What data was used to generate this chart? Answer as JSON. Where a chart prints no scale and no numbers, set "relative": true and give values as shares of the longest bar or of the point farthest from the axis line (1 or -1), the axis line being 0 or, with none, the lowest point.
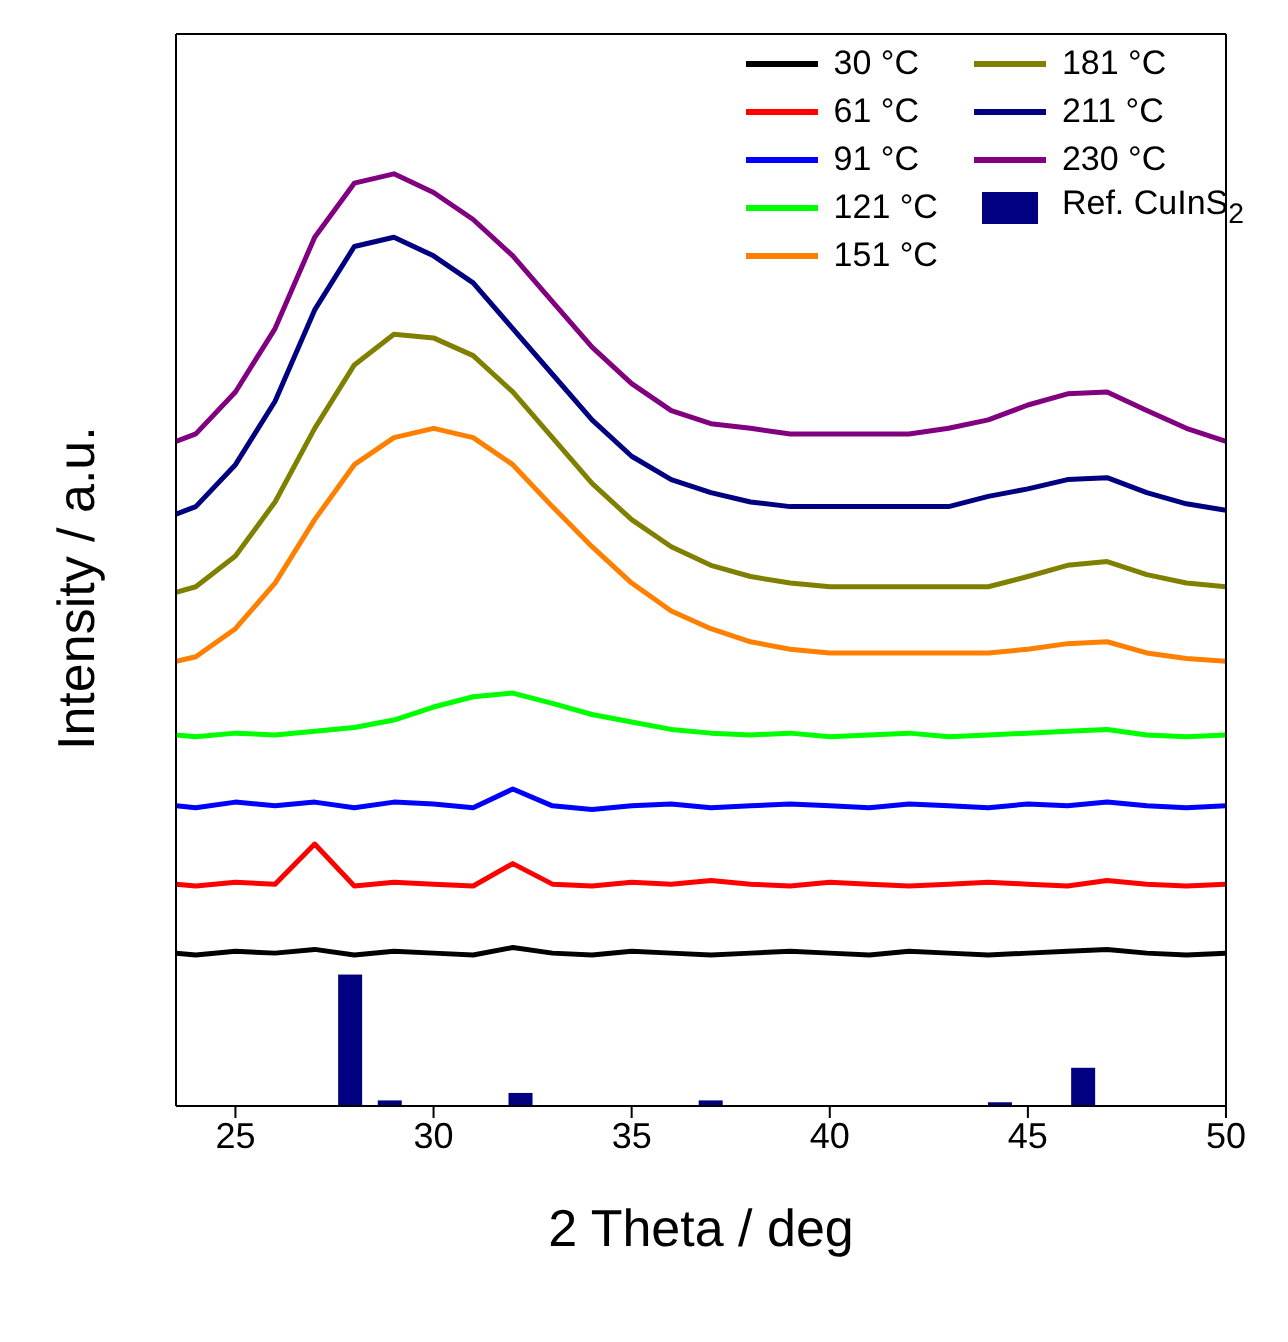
{
  "chart_data": {
    "type": "line",
    "relative": true,
    "xlabel": "2 Theta / deg",
    "ylabel": "Intensity / a.u.",
    "xlim": [
      23.5,
      50
    ],
    "xticks": [
      25,
      30,
      35,
      40,
      45,
      50
    ],
    "legend": "top right",
    "marker": "none",
    "line_style": "solid",
    "x": [
      23.5,
      24,
      25,
      26,
      27,
      28,
      29,
      30,
      31,
      32,
      33,
      34,
      35,
      36,
      37,
      38,
      39,
      40,
      41,
      42,
      43,
      44,
      45,
      46,
      47,
      48,
      49,
      50
    ],
    "series": [
      {
        "name": "30 °C",
        "color": "#000000",
        "values": [
          0.164,
          0.162,
          0.166,
          0.164,
          0.168,
          0.162,
          0.166,
          0.164,
          0.162,
          0.17,
          0.164,
          0.162,
          0.166,
          0.164,
          0.162,
          0.164,
          0.166,
          0.164,
          0.162,
          0.166,
          0.164,
          0.162,
          0.164,
          0.166,
          0.168,
          0.164,
          0.162,
          0.164
        ]
      },
      {
        "name": "61 °C",
        "color": "#ff0000",
        "values": [
          0.238,
          0.236,
          0.24,
          0.238,
          0.281,
          0.236,
          0.24,
          0.238,
          0.236,
          0.26,
          0.238,
          0.236,
          0.24,
          0.238,
          0.242,
          0.238,
          0.236,
          0.24,
          0.238,
          0.236,
          0.238,
          0.24,
          0.238,
          0.236,
          0.242,
          0.238,
          0.236,
          0.238
        ]
      },
      {
        "name": "91 °C",
        "color": "#0000ff",
        "values": [
          0.322,
          0.32,
          0.326,
          0.322,
          0.326,
          0.32,
          0.326,
          0.324,
          0.32,
          0.34,
          0.322,
          0.318,
          0.322,
          0.324,
          0.32,
          0.322,
          0.324,
          0.322,
          0.32,
          0.324,
          0.322,
          0.32,
          0.324,
          0.322,
          0.326,
          0.322,
          0.32,
          0.322
        ]
      },
      {
        "name": "121 °C",
        "color": "#00ff00",
        "values": [
          0.398,
          0.396,
          0.4,
          0.398,
          0.402,
          0.406,
          0.414,
          0.428,
          0.439,
          0.443,
          0.432,
          0.42,
          0.412,
          0.404,
          0.4,
          0.398,
          0.4,
          0.396,
          0.398,
          0.4,
          0.396,
          0.398,
          0.4,
          0.402,
          0.404,
          0.398,
          0.396,
          0.398
        ]
      },
      {
        "name": "151 °C",
        "color": "#ff8000",
        "values": [
          0.477,
          0.482,
          0.512,
          0.561,
          0.629,
          0.688,
          0.717,
          0.727,
          0.717,
          0.688,
          0.643,
          0.6,
          0.561,
          0.531,
          0.512,
          0.498,
          0.49,
          0.486,
          0.486,
          0.486,
          0.486,
          0.486,
          0.49,
          0.496,
          0.498,
          0.486,
          0.48,
          0.477
        ]
      },
      {
        "name": "181 °C",
        "color": "#808000",
        "values": [
          0.551,
          0.557,
          0.59,
          0.648,
          0.727,
          0.795,
          0.828,
          0.824,
          0.805,
          0.766,
          0.717,
          0.668,
          0.629,
          0.6,
          0.58,
          0.568,
          0.561,
          0.557,
          0.557,
          0.557,
          0.557,
          0.557,
          0.568,
          0.58,
          0.584,
          0.57,
          0.561,
          0.557
        ]
      },
      {
        "name": "211 °C",
        "color": "#000080",
        "values": [
          0.635,
          0.643,
          0.688,
          0.756,
          0.854,
          0.922,
          0.932,
          0.912,
          0.883,
          0.834,
          0.785,
          0.736,
          0.697,
          0.672,
          0.658,
          0.648,
          0.643,
          0.643,
          0.643,
          0.643,
          0.643,
          0.654,
          0.662,
          0.672,
          0.674,
          0.658,
          0.646,
          0.639
        ]
      },
      {
        "name": "230 °C",
        "color": "#800080",
        "values": [
          0.713,
          0.721,
          0.766,
          0.834,
          0.932,
          0.99,
          1,
          0.98,
          0.951,
          0.912,
          0.863,
          0.814,
          0.775,
          0.746,
          0.732,
          0.727,
          0.721,
          0.721,
          0.721,
          0.721,
          0.727,
          0.736,
          0.752,
          0.764,
          0.766,
          0.746,
          0.727,
          0.713
        ]
      },
      {
        "name": "Ref. CuInS$_{2}$",
        "type": "bar",
        "color": "#000080",
        "x": [
          27.9,
          28.9,
          32.2,
          37.0,
          44.3,
          46.4
        ],
        "values": [
          0.141,
          0.006,
          0.014,
          0.006,
          0.004,
          0.041
        ]
      }
    ]
  }
}
